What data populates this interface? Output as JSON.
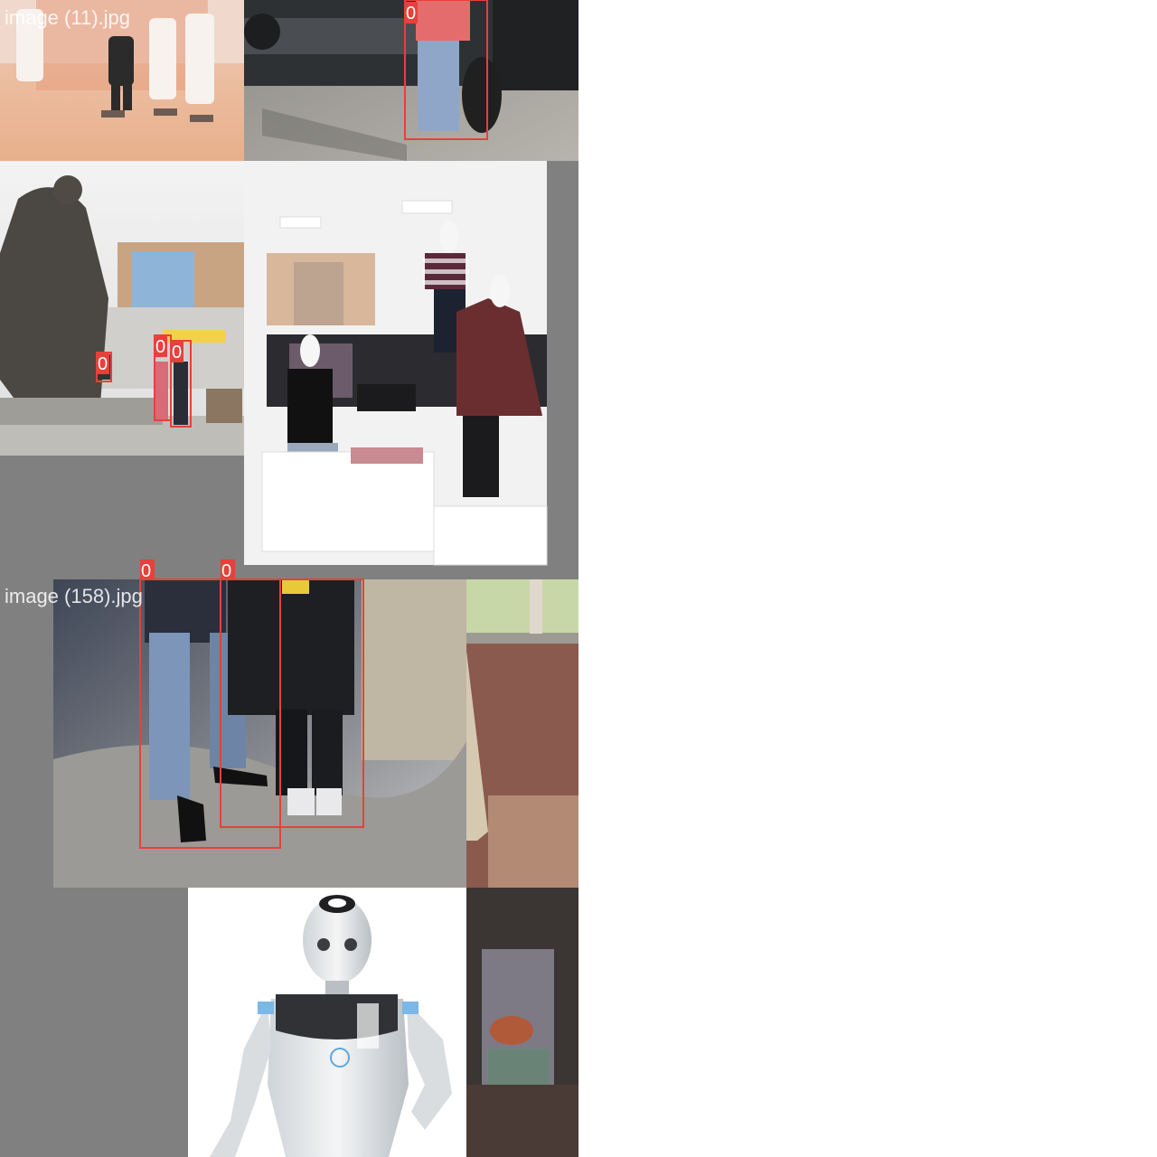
{
  "batches": [
    {
      "filename": "image (11).jpg",
      "boxes": [
        {
          "label": "0"
        },
        {
          "label": "0"
        },
        {
          "label": "0"
        },
        {
          "label": "0"
        }
      ]
    },
    {
      "filename": "image (158).jpg",
      "boxes": [
        {
          "label": "0"
        },
        {
          "label": "0"
        }
      ]
    }
  ],
  "colors": {
    "box": "#e8403a",
    "padding": "#808080",
    "label_text": "#ffffff"
  }
}
